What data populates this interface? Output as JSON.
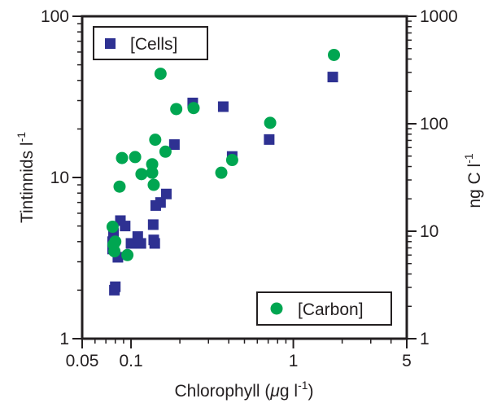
{
  "chart_data": {
    "type": "scatter",
    "x_axis": {
      "label_main": "Chlorophyll (",
      "label_mu": "μ",
      "label_g": "g l",
      "label_sup": "-1",
      "label_close": ")",
      "scale": "log",
      "range": [
        0.05,
        5
      ],
      "tick_values": [
        0.05,
        0.1,
        1,
        5
      ],
      "tick_labels": [
        "0.05",
        "0.1",
        "1",
        "5"
      ]
    },
    "y_left_axis": {
      "label_main": "Tintinnids l",
      "label_sup": "-1",
      "scale": "log",
      "range": [
        1,
        100
      ],
      "tick_values": [
        1,
        10,
        100
      ],
      "tick_labels": [
        "1",
        "10",
        "100"
      ]
    },
    "y_right_axis": {
      "label_main": "ng C l",
      "label_sup": "-1",
      "scale": "log",
      "range": [
        1,
        1000
      ],
      "tick_values": [
        1,
        10,
        100,
        1000
      ],
      "tick_labels": [
        "1",
        "10",
        "100",
        "1000"
      ]
    },
    "grid": false,
    "series": [
      {
        "name": "[Cells]",
        "marker": "square",
        "color": "#2e3192",
        "axis": "left",
        "legend_position": "top-left",
        "points": [
          [
            0.077,
            4.0
          ],
          [
            0.077,
            3.6
          ],
          [
            0.078,
            4.5
          ],
          [
            0.079,
            2.0
          ],
          [
            0.08,
            2.1
          ],
          [
            0.083,
            3.2
          ],
          [
            0.086,
            5.4
          ],
          [
            0.092,
            5.0
          ],
          [
            0.1,
            3.9
          ],
          [
            0.11,
            4.3
          ],
          [
            0.115,
            3.9
          ],
          [
            0.137,
            5.1
          ],
          [
            0.138,
            4.1
          ],
          [
            0.14,
            3.9
          ],
          [
            0.142,
            6.7
          ],
          [
            0.152,
            7.0
          ],
          [
            0.165,
            7.9
          ],
          [
            0.185,
            16
          ],
          [
            0.24,
            29
          ],
          [
            0.37,
            27.5
          ],
          [
            0.42,
            13.5
          ],
          [
            0.71,
            17.2
          ],
          [
            1.75,
            42
          ]
        ]
      },
      {
        "name": "[Carbon]",
        "marker": "circle",
        "color": "#00a651",
        "axis": "right",
        "legend_position": "bottom-right",
        "points": [
          [
            0.077,
            11
          ],
          [
            0.078,
            7.5
          ],
          [
            0.079,
            6.5
          ],
          [
            0.08,
            8
          ],
          [
            0.085,
            26
          ],
          [
            0.088,
            48
          ],
          [
            0.095,
            6
          ],
          [
            0.106,
            49
          ],
          [
            0.116,
            34
          ],
          [
            0.135,
            35
          ],
          [
            0.135,
            42
          ],
          [
            0.138,
            27
          ],
          [
            0.141,
            71
          ],
          [
            0.152,
            292
          ],
          [
            0.163,
            55
          ],
          [
            0.19,
            137
          ],
          [
            0.243,
            140
          ],
          [
            0.36,
            35
          ],
          [
            0.42,
            46
          ],
          [
            0.72,
            102
          ],
          [
            1.78,
            437
          ]
        ]
      }
    ]
  }
}
